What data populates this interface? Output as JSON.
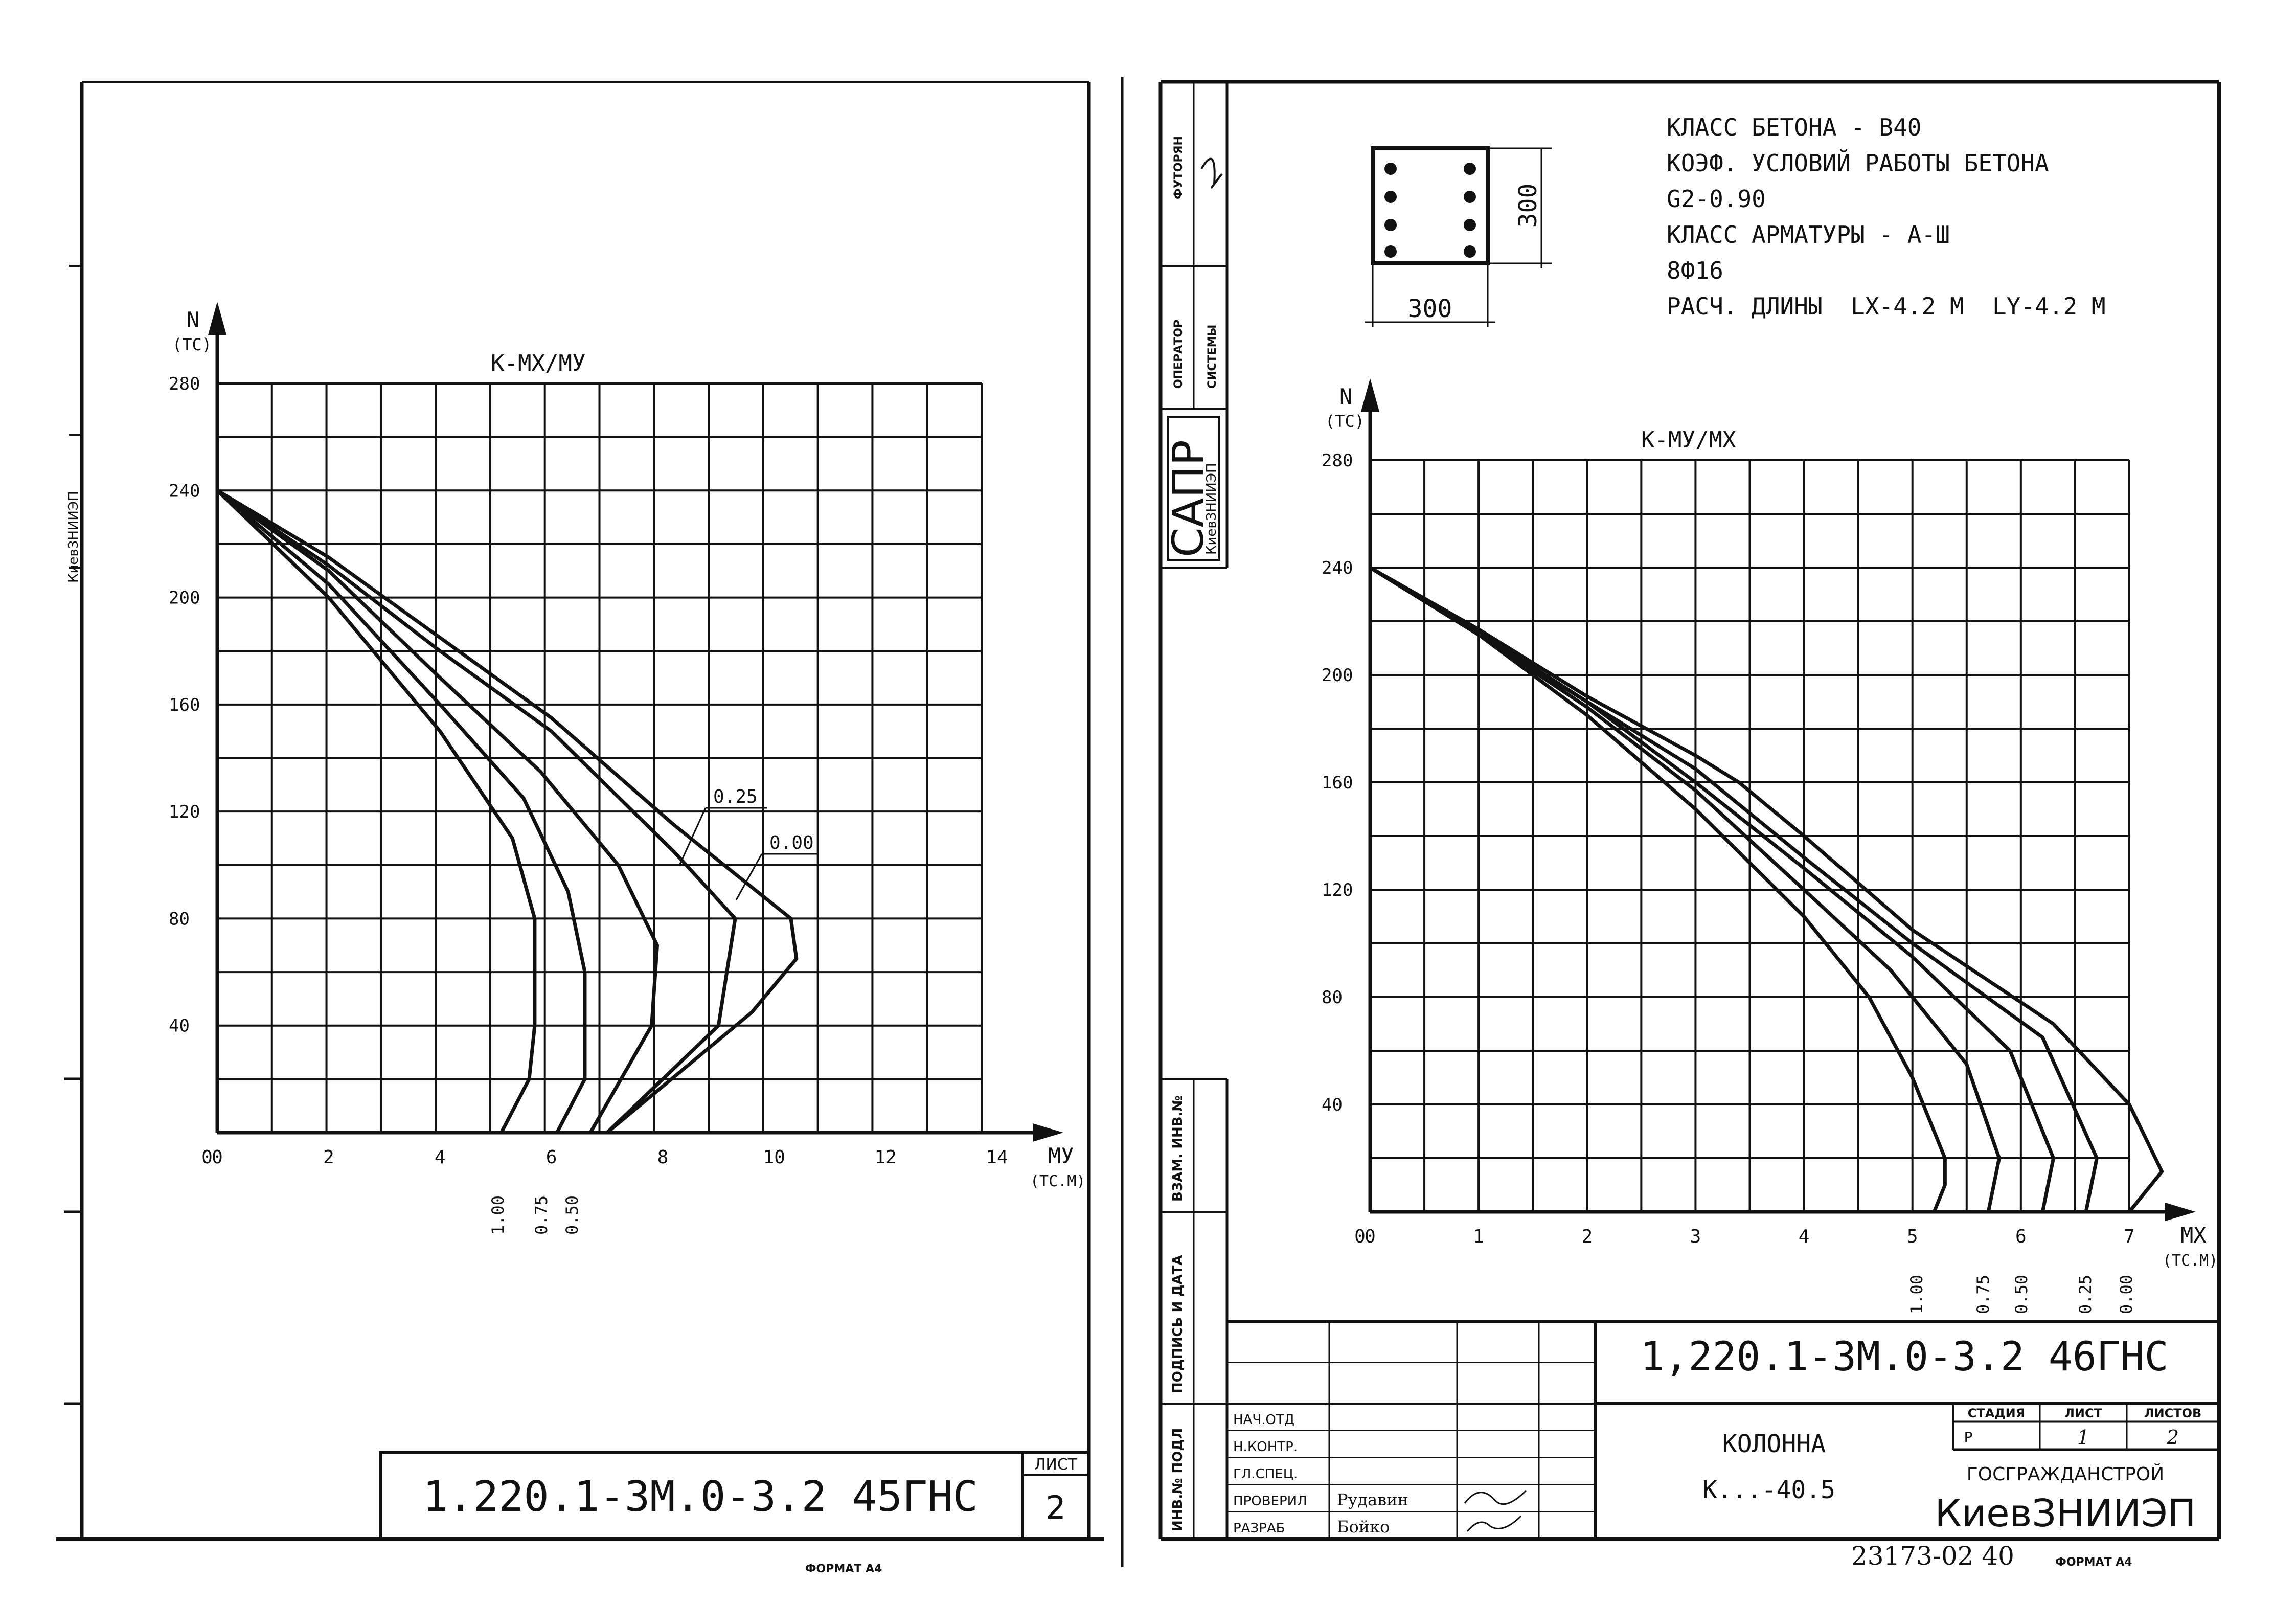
{
  "left_sheet": {
    "code": "1.220.1-3М.0-3.2 45ГНС",
    "sheet_label": "ЛИСТ",
    "sheet_no": "2",
    "format": "ФОРМАТ А4",
    "side_org": "КиевЗНИИЭП"
  },
  "right_sheet": {
    "notes": [
      "КЛАСС БЕТОНА - В40",
      "КОЭФ. УСЛОВИЙ РАБОТЫ БЕТОНА",
      "G2-0.90",
      "КЛАСС АРМАТУРЫ - А-Ш",
      "8Ф16",
      "РАСЧ. ДЛИНЫ  LX-4.2 М  LY-4.2 М"
    ],
    "section_width": "300",
    "section_height": "300",
    "code": "1,220.1-3М.0-3.2 46ГНС",
    "stamp": {
      "roles": [
        "НАЧ.ОТД",
        "Н.КОНТР.",
        "ГЛ.СПЕЦ.",
        "ПРОВЕРИЛ",
        "РАЗРАБ"
      ],
      "names": [
        "",
        "",
        "",
        "Рудавин",
        "Бойко"
      ],
      "title": "КОЛОННА",
      "mark": "К...-40.5",
      "stage_label": "СТАДИЯ",
      "sheet_label": "ЛИСТ",
      "sheets_label": "ЛИСТОВ",
      "stage": "Р",
      "sheet": "1",
      "sheets": "2",
      "org1": "ГОСГРАЖДАНСТРОЙ",
      "org2": "КиевЗНИИЭП"
    },
    "side_labels": [
      "ФУТОРЯН",
      "ОПЕРАТОР",
      "СИСТЕМЫ",
      "САПР",
      "КиевЗНИИЭП"
    ],
    "frame_labels": [
      "ИНВ.№ ПОДЛ",
      "ПОДПИСЬ И ДАТА",
      "ВЗАМ. ИНВ.№"
    ],
    "footer_num": "23173-02 40",
    "format": "ФОРМАТ А4"
  },
  "chart_data": [
    {
      "type": "line",
      "title": "К-МХ/МУ",
      "ylabel": "N",
      "yunit": "(ТС)",
      "xlabel": "МУ",
      "xunit": "(ТС.М)",
      "xlim": [
        0,
        14
      ],
      "ylim": [
        0,
        280
      ],
      "xticks": [
        "0",
        "2",
        "4",
        "6",
        "8",
        "10",
        "12",
        "14"
      ],
      "yticks": [
        "40",
        "80",
        "120",
        "160",
        "200",
        "240",
        "280"
      ],
      "grid": true,
      "series": [
        {
          "name": "1.00",
          "x": [
            0,
            2,
            4,
            5.3,
            5.7,
            5.7,
            5.6,
            5.1
          ],
          "y": [
            240,
            200,
            150,
            110,
            80,
            40,
            20,
            0
          ]
        },
        {
          "name": "0.75",
          "x": [
            0,
            2,
            4,
            5.5,
            6.3,
            6.6,
            6.6,
            6.1
          ],
          "y": [
            240,
            205,
            160,
            125,
            90,
            60,
            20,
            0
          ]
        },
        {
          "name": "0.50",
          "x": [
            0,
            2,
            4,
            5.8,
            7.2,
            7.9,
            7.8,
            6.7
          ],
          "y": [
            240,
            210,
            170,
            135,
            100,
            70,
            40,
            0
          ]
        },
        {
          "name": "0.25",
          "x": [
            0,
            2,
            4,
            6,
            8.2,
            9.3,
            9.0,
            7.0
          ],
          "y": [
            240,
            212,
            180,
            150,
            105,
            80,
            40,
            0
          ]
        },
        {
          "name": "0.00",
          "x": [
            0,
            2,
            4,
            6,
            8.2,
            10.3,
            10.4,
            9.6,
            7.0
          ],
          "y": [
            240,
            215,
            185,
            155,
            115,
            80,
            65,
            45,
            0
          ]
        }
      ],
      "annotations": [
        "0.25",
        "0.00"
      ]
    },
    {
      "type": "line",
      "title": "К-МУ/МХ",
      "ylabel": "N",
      "yunit": "(ТС)",
      "xlabel": "МХ",
      "xunit": "(ТС.М)",
      "xlim": [
        0,
        7
      ],
      "ylim": [
        0,
        280
      ],
      "xticks": [
        "0",
        "1",
        "2",
        "3",
        "4",
        "5",
        "6",
        "7"
      ],
      "yticks": [
        "40",
        "80",
        "120",
        "160",
        "200",
        "240",
        "280"
      ],
      "grid": true,
      "series": [
        {
          "name": "1.00",
          "x": [
            0,
            1,
            2,
            3,
            4,
            4.6,
            5.0,
            5.3,
            5.3,
            5.2
          ],
          "y": [
            240,
            215,
            185,
            150,
            110,
            80,
            50,
            20,
            10,
            0
          ]
        },
        {
          "name": "0.75",
          "x": [
            0,
            1,
            2,
            3,
            4,
            4.8,
            5.5,
            5.8,
            5.7
          ],
          "y": [
            240,
            215,
            188,
            157,
            120,
            90,
            55,
            20,
            0
          ]
        },
        {
          "name": "0.50",
          "x": [
            0,
            1,
            2,
            3,
            4,
            5,
            5.9,
            6.3,
            6.2
          ],
          "y": [
            240,
            215,
            190,
            160,
            128,
            95,
            60,
            20,
            0
          ]
        },
        {
          "name": "0.25",
          "x": [
            0,
            1,
            2,
            3,
            4,
            5,
            6.2,
            6.7,
            6.6
          ],
          "y": [
            240,
            216,
            190,
            165,
            132,
            100,
            65,
            20,
            0
          ]
        },
        {
          "name": "0.00",
          "x": [
            0,
            1,
            2,
            3,
            3.4,
            4,
            5,
            6.3,
            7.0,
            7.3,
            7.0
          ],
          "y": [
            240,
            217,
            192,
            170,
            160,
            140,
            105,
            70,
            40,
            15,
            0
          ]
        }
      ]
    }
  ]
}
